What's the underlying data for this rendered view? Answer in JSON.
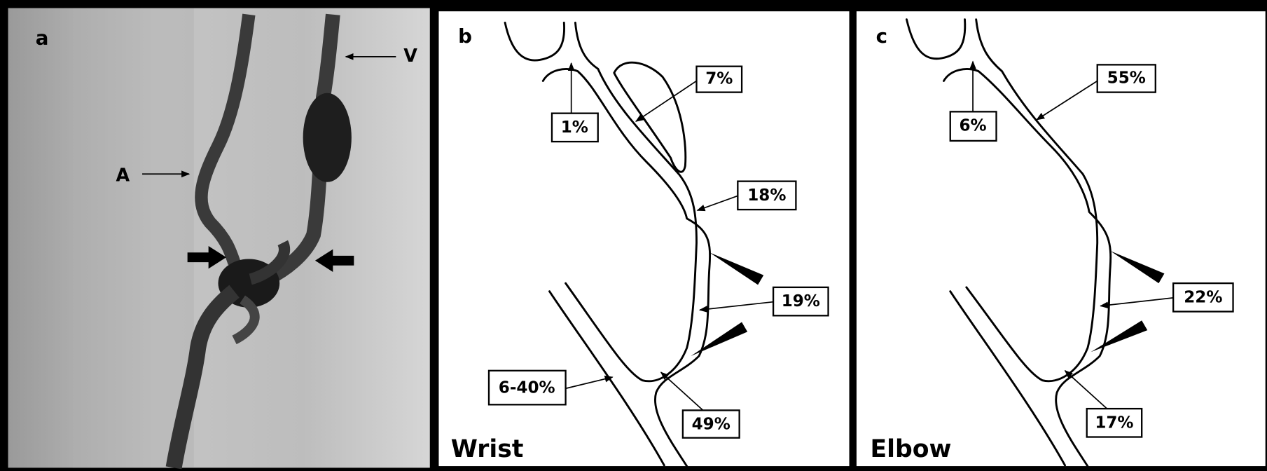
{
  "panels": [
    {
      "letter": "a",
      "annotations": [
        "A",
        "V"
      ]
    },
    {
      "letter": "b",
      "caption": "Wrist",
      "labels": [
        "1%",
        "7%",
        "18%",
        "19%",
        "6-40%",
        "49%"
      ]
    },
    {
      "letter": "c",
      "caption": "Elbow",
      "labels": [
        "6%",
        "55%",
        "22%",
        "17%"
      ]
    }
  ]
}
